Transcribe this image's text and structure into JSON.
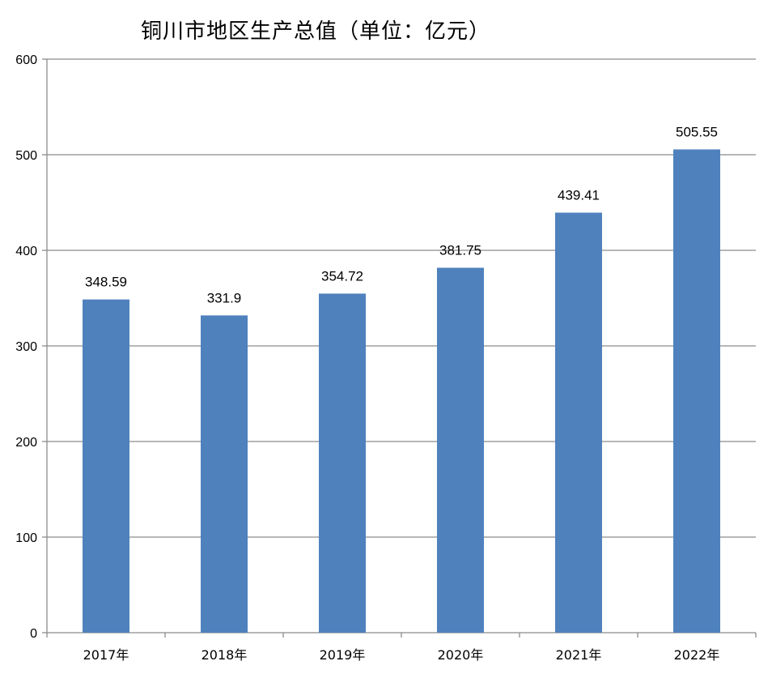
{
  "chart_data": {
    "type": "bar",
    "title": "铜川市地区生产总值（单位：亿元）",
    "xlabel": "",
    "ylabel": "",
    "categories": [
      "2017年",
      "2018年",
      "2019年",
      "2020年",
      "2021年",
      "2022年"
    ],
    "values": [
      348.59,
      331.9,
      354.72,
      381.75,
      439.41,
      505.55
    ],
    "data_labels": [
      "348.59",
      "331.9",
      "354.72",
      "381.75",
      "439.41",
      "505.55"
    ],
    "ylim": [
      0,
      600
    ],
    "yticks": [
      0,
      100,
      200,
      300,
      400,
      500,
      600
    ],
    "grid": true,
    "legend": "none",
    "colors": {
      "bar": "#4f81bd",
      "grid": "#8c8c8c",
      "axis": "#8c8c8c"
    }
  }
}
